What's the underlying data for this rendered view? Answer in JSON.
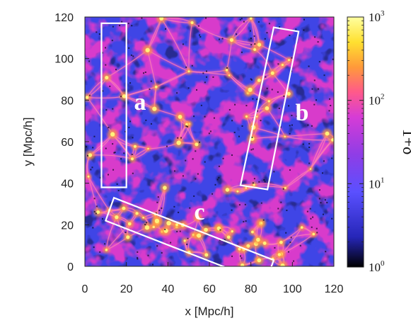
{
  "chart_data": {
    "type": "heatmap",
    "title": "",
    "xlabel": "x [Mpc/h]",
    "ylabel": "y [Mpc/h]",
    "xlim": [
      0,
      120
    ],
    "ylim": [
      0,
      120
    ],
    "x_ticks": [
      "0",
      "20",
      "40",
      "60",
      "80",
      "100",
      "120"
    ],
    "y_ticks": [
      "0",
      "20",
      "40",
      "60",
      "80",
      "100",
      "120"
    ],
    "colorbar": {
      "label": "1+δ",
      "scale": "log",
      "range": [
        1,
        1000
      ],
      "tick_labels": [
        {
          "base": "10",
          "exp": "0"
        },
        {
          "base": "10",
          "exp": "1"
        },
        {
          "base": "10",
          "exp": "2"
        },
        {
          "base": "10",
          "exp": "3"
        }
      ],
      "colormap": [
        "#000000",
        "#2626b8",
        "#5a50ff",
        "#8f3de6",
        "#d63cd6",
        "#ff5a8a",
        "#ff9a3a",
        "#ffe030",
        "#ffffa0"
      ]
    },
    "regions": [
      {
        "label": "a",
        "corners": [
          [
            8,
            38
          ],
          [
            20,
            38
          ],
          [
            20,
            117
          ],
          [
            8,
            117
          ]
        ]
      },
      {
        "label": "b",
        "corners": [
          [
            75,
            39
          ],
          [
            88,
            37
          ],
          [
            103,
            113
          ],
          [
            91,
            115
          ]
        ]
      },
      {
        "label": "c",
        "corners": [
          [
            10,
            22
          ],
          [
            14,
            33
          ],
          [
            91,
            3
          ],
          [
            87,
            -8
          ]
        ]
      }
    ]
  }
}
